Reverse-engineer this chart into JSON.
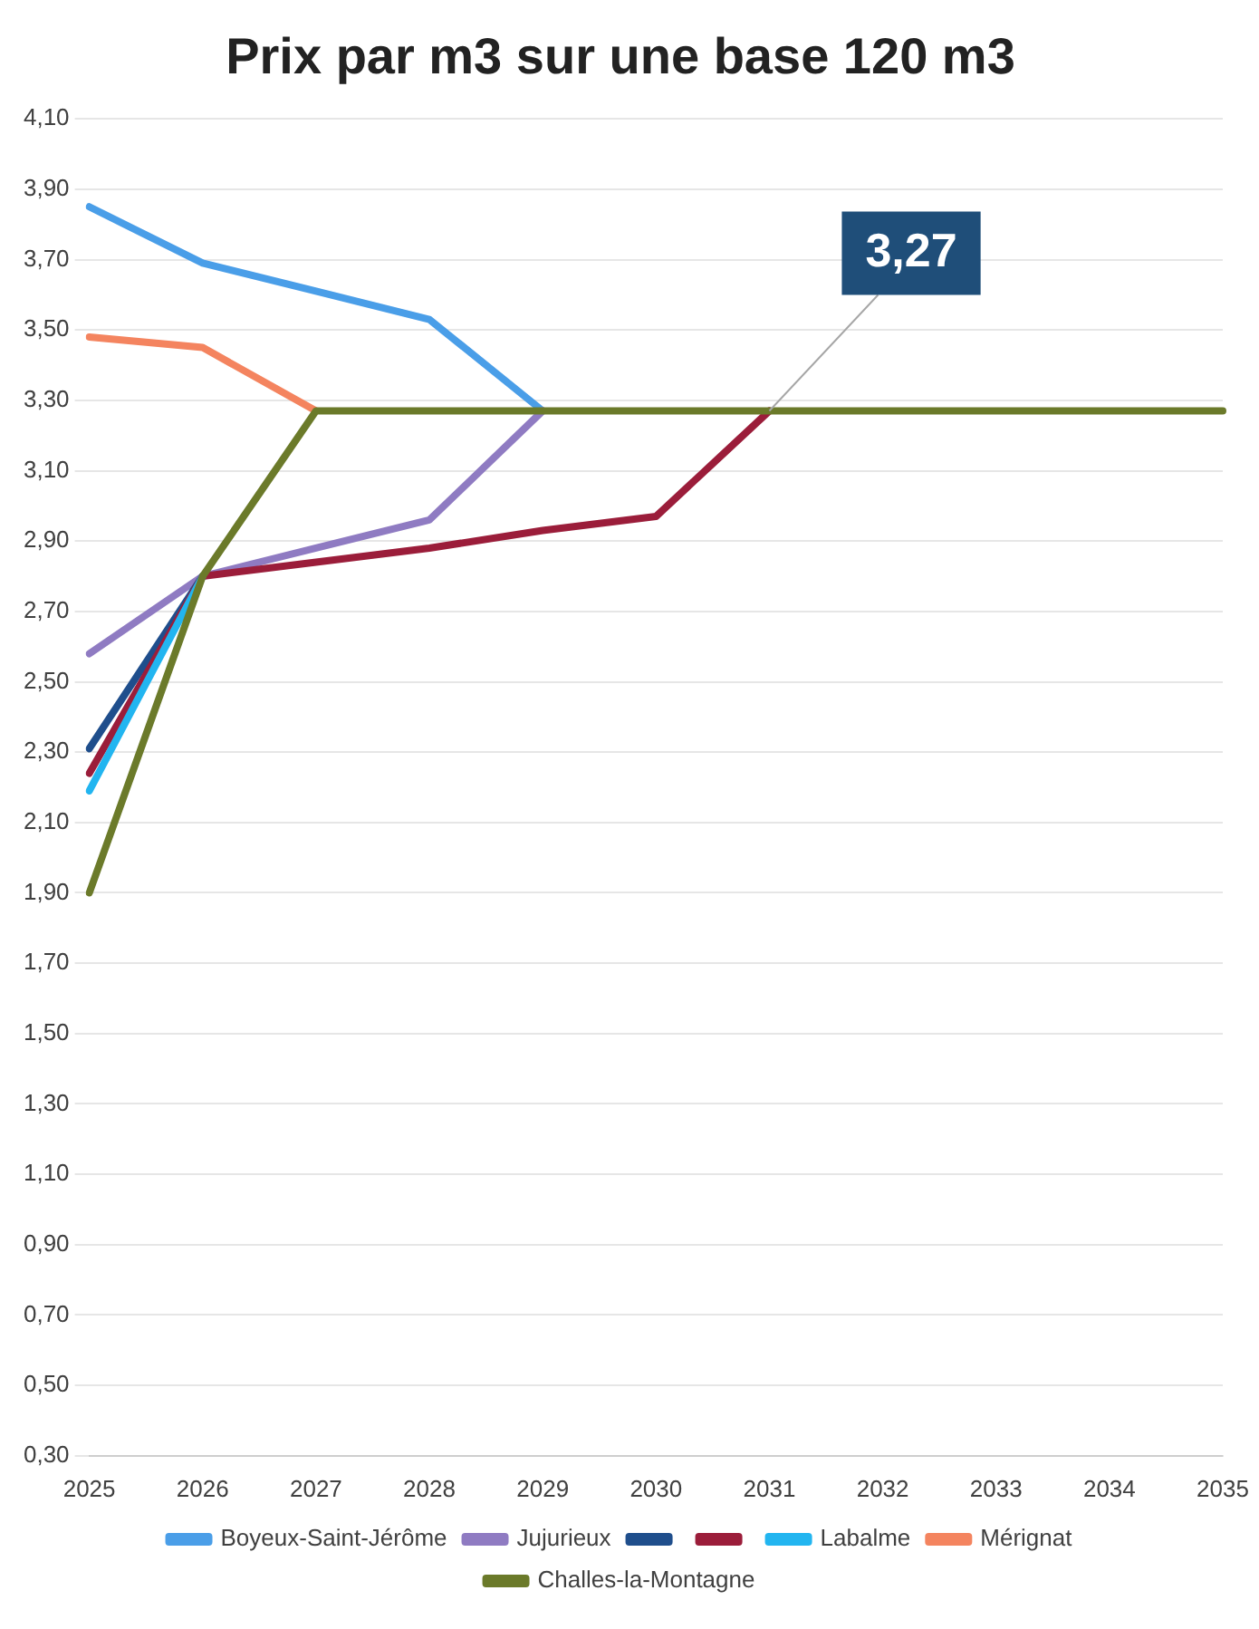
{
  "chart_data": {
    "type": "line",
    "title": "Prix par m3 sur une base 120 m3",
    "categories": [
      "2025",
      "2026",
      "2027",
      "2028",
      "2029",
      "2030",
      "2031",
      "2032",
      "2033",
      "2034",
      "2035"
    ],
    "series": [
      {
        "name": "Boyeux-Saint-Jérôme",
        "color": "#4a9ee8",
        "values": [
          3.85,
          3.69,
          3.61,
          3.53,
          3.27,
          null,
          null,
          null,
          null,
          null,
          null
        ]
      },
      {
        "name": "Jujurieux",
        "color": "#8f7bc2",
        "values": [
          2.58,
          2.8,
          2.88,
          2.96,
          3.27,
          null,
          null,
          null,
          null,
          null,
          null
        ]
      },
      {
        "color": "#1f4e8c",
        "values": [
          2.31,
          2.8,
          null,
          null,
          null,
          null,
          null,
          null,
          null,
          null,
          null
        ]
      },
      {
        "color": "#9b1d3a",
        "values": [
          2.24,
          2.8,
          2.84,
          2.88,
          2.93,
          2.97,
          3.27,
          null,
          null,
          null,
          null
        ]
      },
      {
        "name": "Labalme",
        "color": "#22b5f0",
        "values": [
          2.19,
          2.8,
          null,
          null,
          null,
          null,
          null,
          null,
          null,
          null,
          null
        ]
      },
      {
        "name": "Mérignat",
        "color": "#f4845f",
        "values": [
          3.48,
          3.45,
          3.27,
          null,
          null,
          null,
          null,
          null,
          null,
          null,
          null
        ]
      },
      {
        "name": "Challes-la-Montagne",
        "color": "#6b7a2a",
        "values": [
          1.9,
          2.8,
          3.27,
          3.27,
          3.27,
          3.27,
          3.27,
          3.27,
          3.27,
          3.27,
          3.27
        ]
      }
    ],
    "ylim": [
      0.3,
      4.1
    ],
    "yticks": [
      {
        "value": 0.3,
        "label": "0,30"
      },
      {
        "value": 0.5,
        "label": "0,50"
      },
      {
        "value": 0.7,
        "label": "0,70"
      },
      {
        "value": 0.9,
        "label": "0,90"
      },
      {
        "value": 1.1,
        "label": "1,10"
      },
      {
        "value": 1.3,
        "label": "1,30"
      },
      {
        "value": 1.5,
        "label": "1,50"
      },
      {
        "value": 1.7,
        "label": "1,70"
      },
      {
        "value": 1.9,
        "label": "1,90"
      },
      {
        "value": 2.1,
        "label": "2,10"
      },
      {
        "value": 2.3,
        "label": "2,30"
      },
      {
        "value": 2.5,
        "label": "2,50"
      },
      {
        "value": 2.7,
        "label": "2,70"
      },
      {
        "value": 2.9,
        "label": "2,90"
      },
      {
        "value": 3.1,
        "label": "3,10"
      },
      {
        "value": 3.3,
        "label": "3,30"
      },
      {
        "value": 3.5,
        "label": "3,50"
      },
      {
        "value": 3.7,
        "label": "3,70"
      },
      {
        "value": 3.9,
        "label": "3,90"
      },
      {
        "value": 4.1,
        "label": "4,10"
      }
    ],
    "annotations": [
      {
        "text": "3,27",
        "x": "2031",
        "y": 3.27
      }
    ],
    "grid": "y",
    "legend": "bottom",
    "marker": "none",
    "line_style": "solid"
  }
}
